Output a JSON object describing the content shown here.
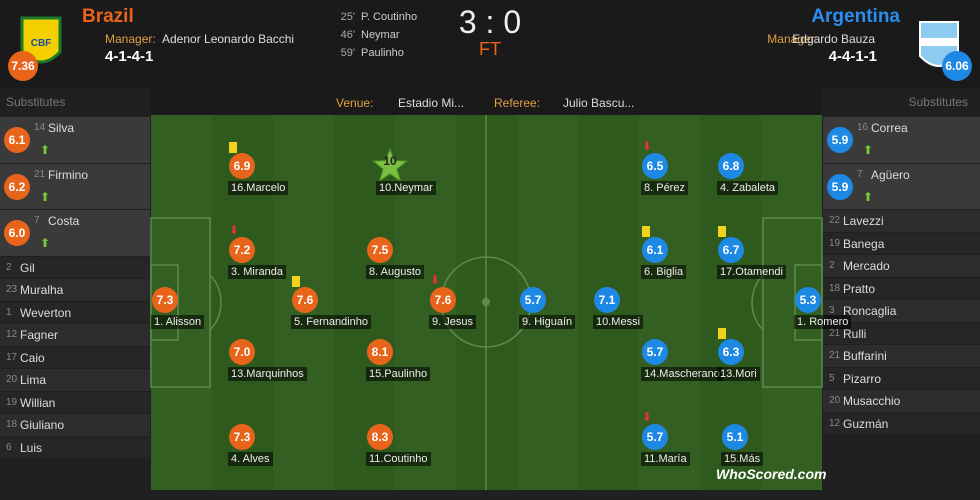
{
  "home": {
    "team": "Brazil",
    "rating": "7.36",
    "manager_label": "Manager:",
    "manager": "Adenor Leonardo Bacchi",
    "formation": "4-1-4-1"
  },
  "away": {
    "team": "Argentina",
    "rating": "6.06",
    "manager_label": "Manager:",
    "manager": "Edgardo Bauza",
    "formation": "4-4-1-1"
  },
  "goals": [
    {
      "minute": "25'",
      "player": "P. Coutinho"
    },
    {
      "minute": "46'",
      "player": "Neymar"
    },
    {
      "minute": "59'",
      "player": "Paulinho"
    }
  ],
  "score": "3 : 0",
  "status": "FT",
  "info": {
    "venue_label": "Venue:",
    "venue": "Estadio Mi...",
    "referee_label": "Referee:",
    "referee": "Julio Bascu..."
  },
  "home_subs": {
    "title": "Substitutes",
    "players": [
      {
        "number": "14",
        "name": "Silva",
        "rating": "6.1"
      },
      {
        "number": "21",
        "name": "Firmino",
        "rating": "6.2"
      },
      {
        "number": "7",
        "name": "Costa",
        "rating": "6.0"
      },
      {
        "number": "2",
        "name": "Gil"
      },
      {
        "number": "23",
        "name": "Muralha"
      },
      {
        "number": "1",
        "name": "Weverton"
      },
      {
        "number": "12",
        "name": "Fagner"
      },
      {
        "number": "17",
        "name": "Caio"
      },
      {
        "number": "20",
        "name": "Lima"
      },
      {
        "number": "19",
        "name": "Willian"
      },
      {
        "number": "18",
        "name": "Giuliano"
      },
      {
        "number": "6",
        "name": "Luis"
      }
    ]
  },
  "away_subs": {
    "title": "Substitutes",
    "players": [
      {
        "number": "16",
        "name": "Correa",
        "rating": "5.9"
      },
      {
        "number": "7",
        "name": "Agüero",
        "rating": "5.9"
      },
      {
        "number": "22",
        "name": "Lavezzi"
      },
      {
        "number": "19",
        "name": "Banega"
      },
      {
        "number": "2",
        "name": "Mercado"
      },
      {
        "number": "18",
        "name": "Pratto"
      },
      {
        "number": "3",
        "name": "Roncaglia"
      },
      {
        "number": "21",
        "name": "Rulli"
      },
      {
        "number": "21",
        "name": "Buffarini"
      },
      {
        "number": "5",
        "name": "Pizarro"
      },
      {
        "number": "20",
        "name": "Musacchio"
      },
      {
        "number": "12",
        "name": "Guzmán"
      }
    ]
  },
  "home_lineup": [
    {
      "label": "1. Alisson",
      "rating": "7.3"
    },
    {
      "label": "16.Marcelo",
      "rating": "6.9"
    },
    {
      "label": "3. Miranda",
      "rating": "7.2"
    },
    {
      "label": "13.Marquinhos",
      "rating": "7.0"
    },
    {
      "label": "4. Alves",
      "rating": "7.3"
    },
    {
      "label": "5. Fernandinho",
      "rating": "7.6"
    },
    {
      "label": "10.Neymar",
      "rating": "10"
    },
    {
      "label": "8. Augusto",
      "rating": "7.5"
    },
    {
      "label": "15.Paulinho",
      "rating": "8.1"
    },
    {
      "label": "11.Coutinho",
      "rating": "8.3"
    },
    {
      "label": "9. Jesus",
      "rating": "7.6"
    }
  ],
  "away_lineup": [
    {
      "label": "9. Higuaín",
      "rating": "5.7"
    },
    {
      "label": "10.Messi",
      "rating": "7.1"
    },
    {
      "label": "8. Pérez",
      "rating": "6.5"
    },
    {
      "label": "6. Biglia",
      "rating": "6.1"
    },
    {
      "label": "14.Mascherano",
      "rating": "5.7"
    },
    {
      "label": "11.María",
      "rating": "5.7"
    },
    {
      "label": "4. Zabaleta",
      "rating": "6.8"
    },
    {
      "label": "17.Otamendi",
      "rating": "6.7"
    },
    {
      "label": "13.Mori",
      "rating": "6.3"
    },
    {
      "label": "15.Más",
      "rating": "5.1"
    },
    {
      "label": "1. Romero",
      "rating": "5.3"
    }
  ],
  "watermark": "WhoScored.com"
}
